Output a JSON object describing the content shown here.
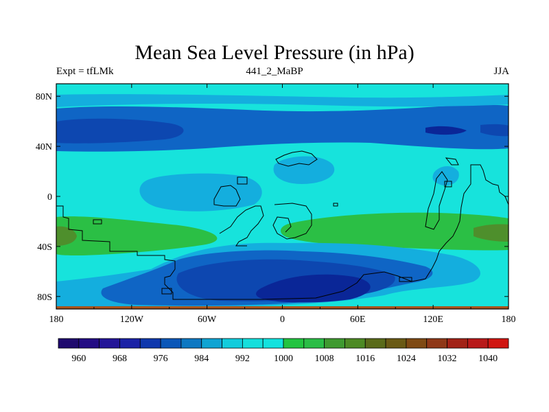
{
  "chart_data": {
    "type": "heatmap",
    "title": "Mean Sea Level Pressure (in hPa)",
    "left_subtitle": "Expt = tfLMk",
    "center_subtitle": "441_2_MaBP",
    "right_subtitle": "JJA",
    "x_ticks": [
      "180",
      "120W",
      "60W",
      "0",
      "60E",
      "120E",
      "180"
    ],
    "y_ticks": [
      "80N",
      "40N",
      "0",
      "40S",
      "80S"
    ],
    "lon_range": [
      -180,
      180
    ],
    "lat_range": [
      -90,
      90
    ],
    "colorbar": {
      "labels": [
        "960",
        "968",
        "976",
        "984",
        "992",
        "1000",
        "1008",
        "1016",
        "1024",
        "1032",
        "1040"
      ],
      "colors": [
        "#1f0a6e",
        "#230c84",
        "#241598",
        "#1b22a6",
        "#0f38ad",
        "#0a57b8",
        "#0d78c2",
        "#0fa4d3",
        "#12ccdc",
        "#15dfdc",
        "#13e2de",
        "#22c440",
        "#2abd46",
        "#3f9a30",
        "#4d8a24",
        "#5a6b1a",
        "#6a5a15",
        "#7f4a14",
        "#8f3818",
        "#a22217",
        "#b8191a",
        "#d01612"
      ]
    },
    "field_colors": {
      "base": "#17e3dc",
      "low1": "#14aede",
      "low2": "#0f65c5",
      "low3": "#0d47b0",
      "low4": "#0a2697",
      "high1": "#2bbf45",
      "high2": "#4e8f2c"
    }
  }
}
